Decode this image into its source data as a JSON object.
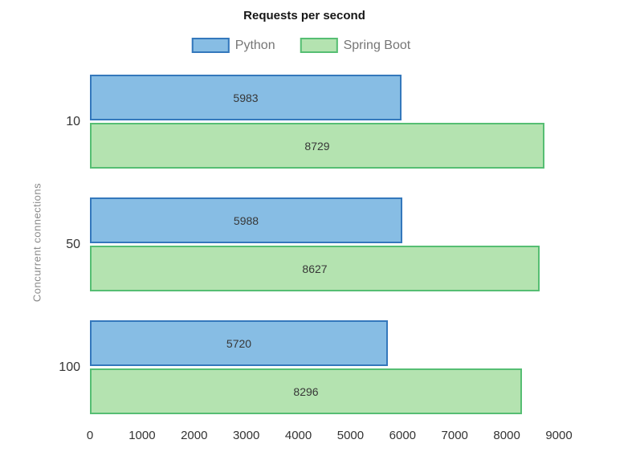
{
  "chart_data": {
    "type": "bar",
    "orientation": "horizontal",
    "title": "Requests per second",
    "xlabel": "",
    "ylabel": "Concurrent connections",
    "categories": [
      "10",
      "50",
      "100"
    ],
    "series": [
      {
        "name": "Python",
        "values": [
          5983,
          5988,
          5720
        ],
        "fill": "#87BDE4",
        "stroke": "#3478BC"
      },
      {
        "name": "Spring Boot",
        "values": [
          8729,
          8627,
          8296
        ],
        "fill": "#B4E3B0",
        "stroke": "#56BE73"
      }
    ],
    "xlim": [
      0,
      9000
    ],
    "xticks": [
      0,
      1000,
      2000,
      3000,
      4000,
      5000,
      6000,
      7000,
      8000,
      9000
    ],
    "grid": false,
    "legend_position": "top",
    "bar_value_labels": true,
    "text_colors": {
      "title": "#161616",
      "legend": "#767676",
      "axis_title": "#8A8A8A",
      "ticks": "#333333",
      "bar_values": "#373737"
    }
  }
}
